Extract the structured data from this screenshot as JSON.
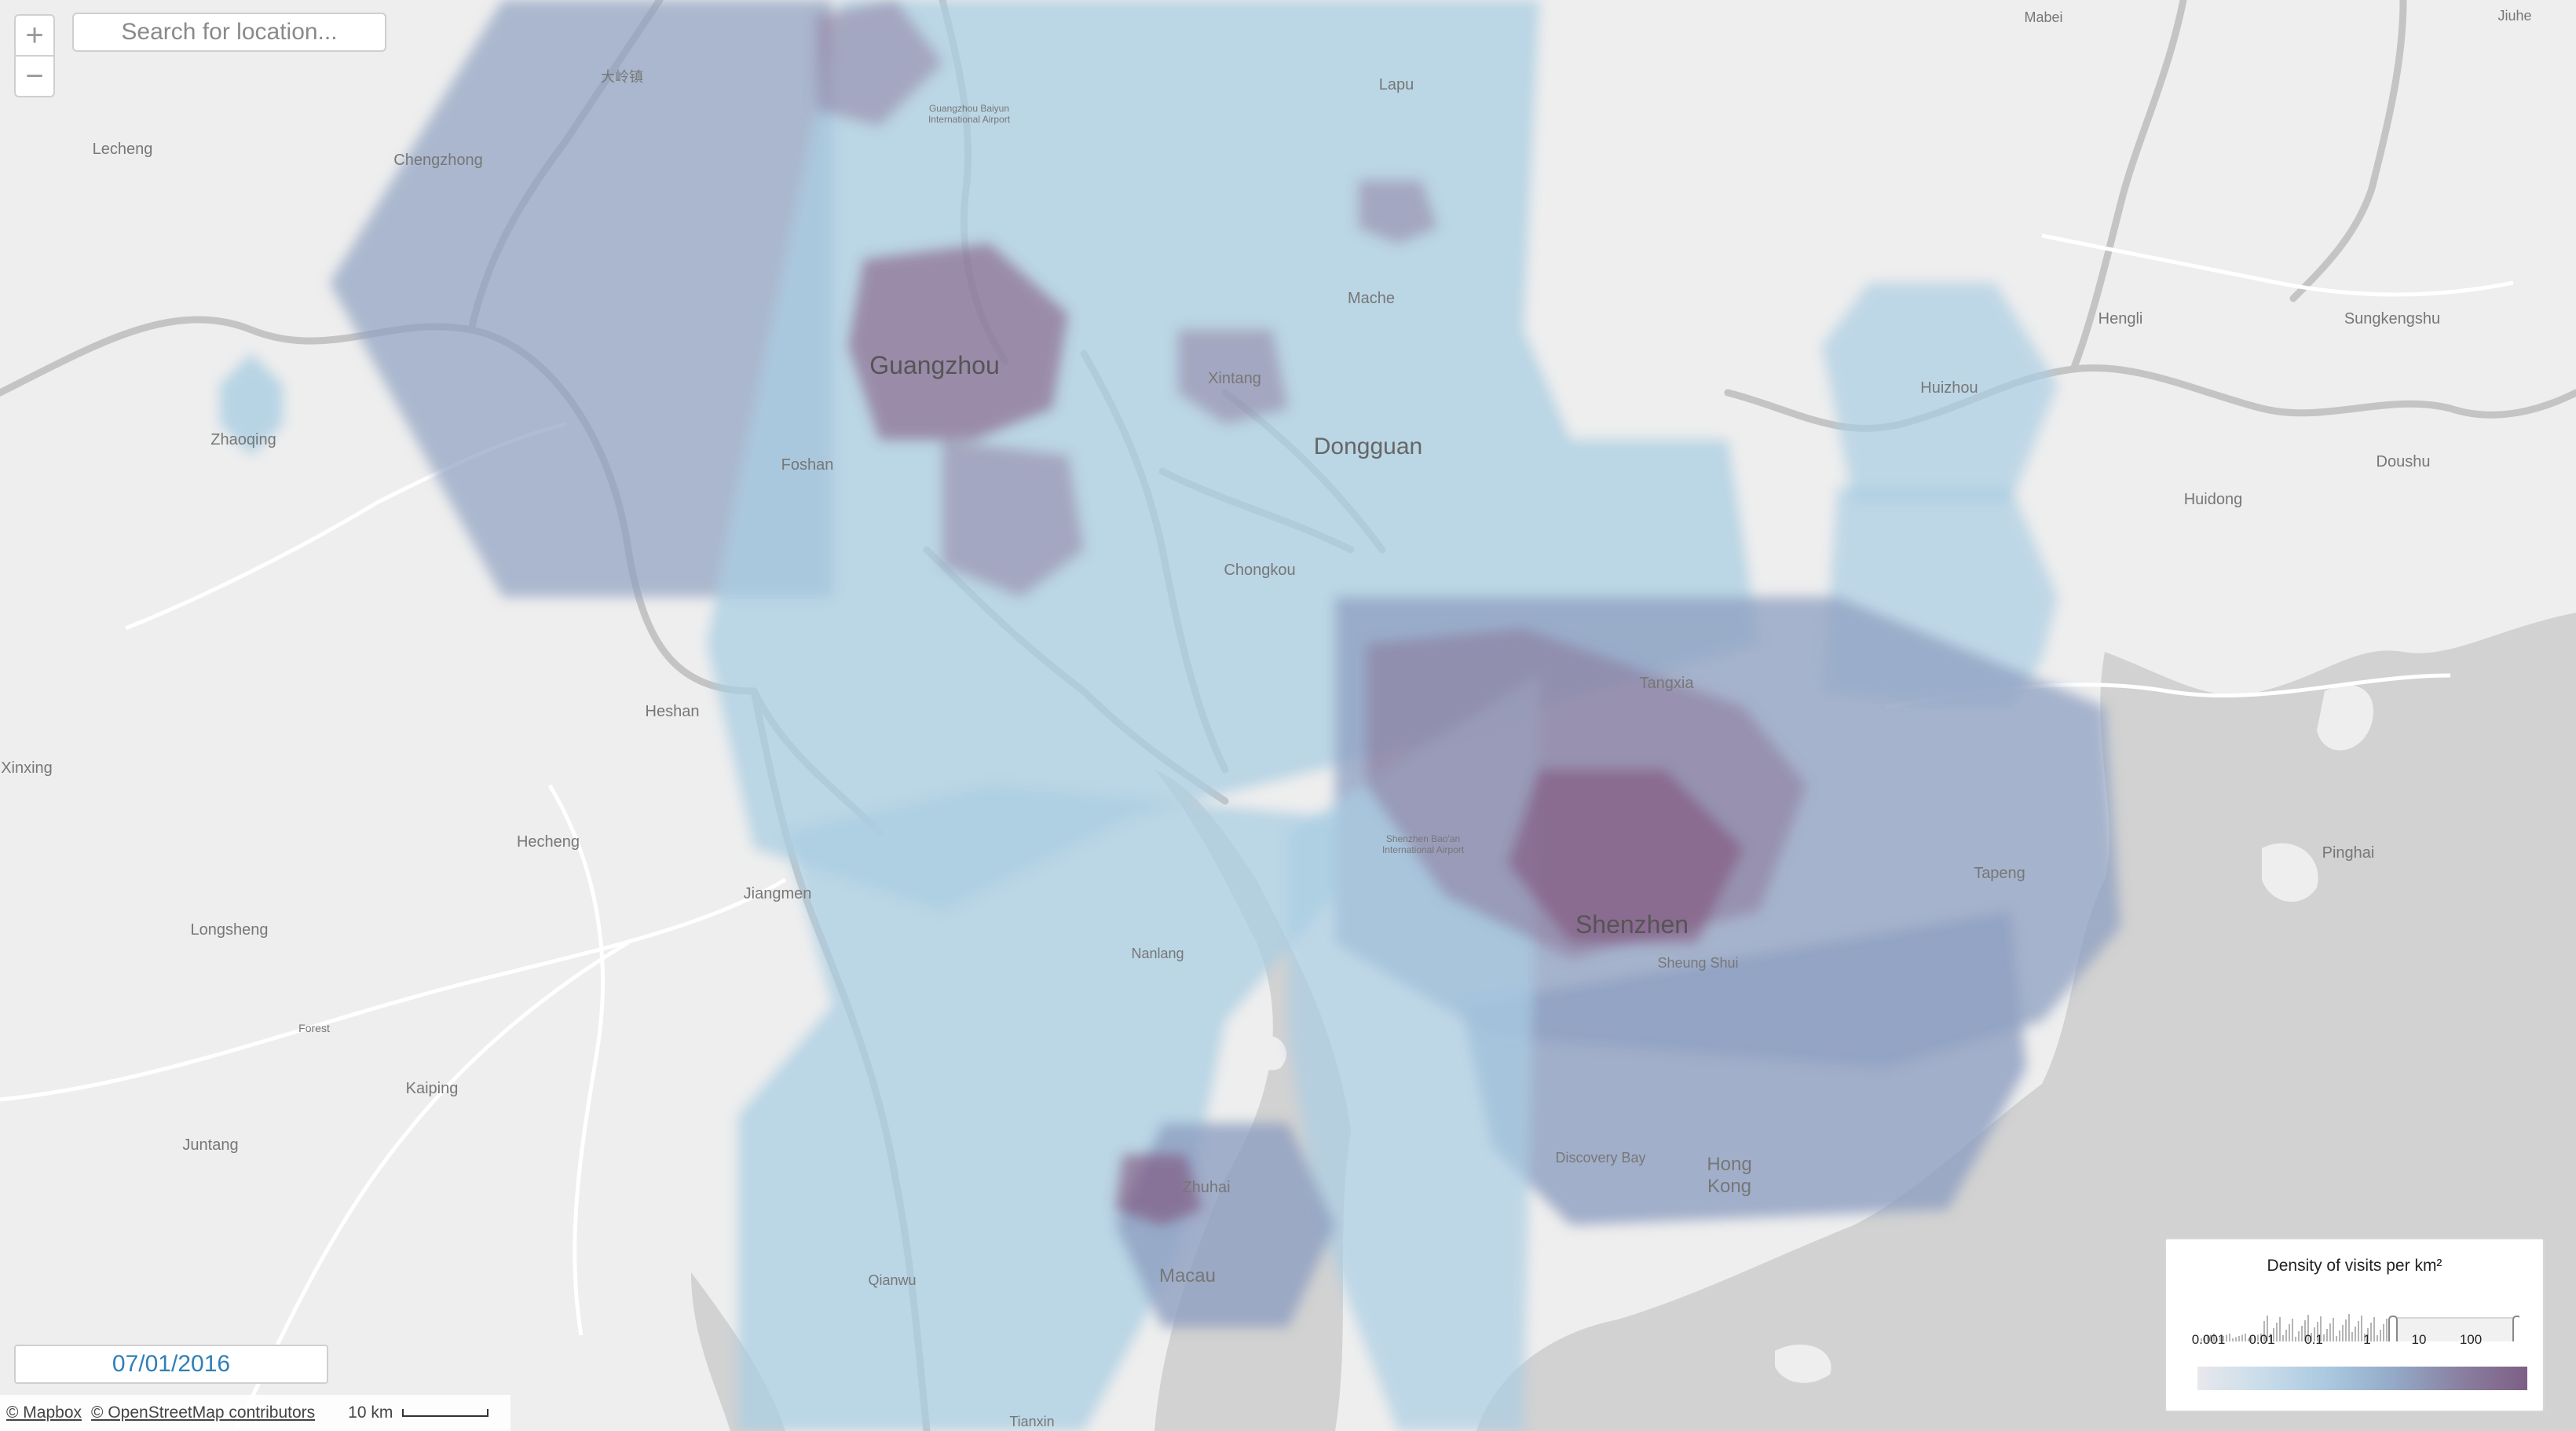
{
  "controls": {
    "zoom_in": "+",
    "zoom_out": "−",
    "search_placeholder": "Search for location..."
  },
  "date": "07/01/2016",
  "attribution": {
    "mapbox": "© Mapbox",
    "osm": "© OpenStreetMap contributors",
    "scale": "10 km"
  },
  "legend": {
    "title": "Density of visits per km²",
    "ticks": [
      "0.001",
      "0.01",
      "0.1",
      "1",
      "10",
      "100"
    ]
  },
  "colors": {
    "land": "#eeeeee",
    "water": "#cfcfcf",
    "low_density": "#a9cde2",
    "mid_density": "#8d9fc0",
    "high_density": "#7f4f78",
    "accent": "#2f7fb8"
  },
  "labels": {
    "guangzhou": "Guangzhou",
    "dongguan": "Dongguan",
    "shenzhen": "Shenzhen",
    "hong": "Hong",
    "kong": "Kong",
    "macau": "Macau",
    "zhuhai": "Zhuhai",
    "foshan": "Foshan",
    "zhaoqing": "Zhaoqing",
    "huizhou": "Huizhou",
    "jiangmen": "Jiangmen",
    "heshan": "Heshan",
    "hecheng": "Hecheng",
    "longsheng": "Longsheng",
    "kaiping": "Kaiping",
    "juntang": "Juntang",
    "forest": "Forest",
    "xinxing": "Xinxing",
    "lecheng": "Lecheng",
    "chengzhong": "Chengzhong",
    "lapu": "Lapu",
    "mache": "Mache",
    "xintang": "Xintang",
    "chongkou": "Chongkou",
    "tangxia": "Tangxia",
    "tapeng": "Tapeng",
    "shenzhen_airport_1": "Shenzhen Bao'an",
    "shenzhen_airport_2": "International Airport",
    "guangzhou_airport_1": "Guangzhou Baiyun",
    "guangzhou_airport_2": "International Airport",
    "shueng_shui": "Sheung Shui",
    "discovery_bay": "Discovery Bay",
    "nanlang": "Nanlang",
    "qianwu": "Qianwu",
    "tianxin": "Tianxin",
    "mabei": "Mabei",
    "jiuhe": "Jiuhe",
    "hengli": "Hengli",
    "sungkengshu": "Sungkengshu",
    "doushu": "Doushu",
    "huidong": "Huidong",
    "pinghai": "Pinghai",
    "dalingzhen": "大岭镇"
  }
}
